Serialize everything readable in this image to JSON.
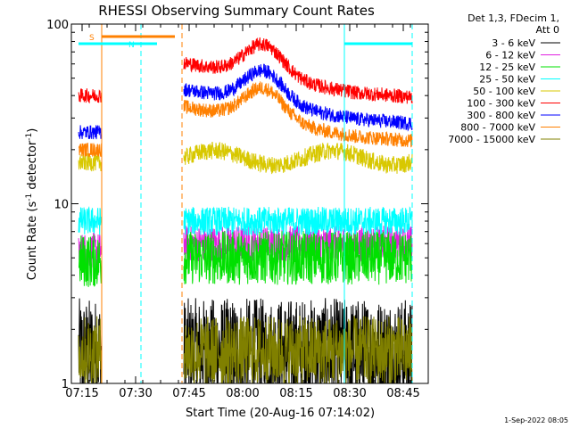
{
  "chart_data": {
    "type": "line",
    "title": "RHESSI Observing Summary Count Rates",
    "xlabel": "Start Time (20-Aug-16 07:14:02)",
    "ylabel_main": "Count Rate (s",
    "ylabel_sup1": "-1",
    "ylabel_mid": " detector",
    "ylabel_sup2": "-1",
    "ylabel_end": ")",
    "yscale": "log",
    "ylim": [
      1,
      100
    ],
    "xlim": [
      "07:12",
      "08:52"
    ],
    "x_ticks": [
      "07:15",
      "07:30",
      "07:45",
      "08:00",
      "08:15",
      "08:30",
      "08:45"
    ],
    "y_ticks": [
      "1",
      "10",
      "100"
    ],
    "legend_header": [
      "Det 1,3, FDecim 1,",
      "Att 0"
    ],
    "legend_position": "right",
    "series": [
      {
        "name": "3 - 6 keV",
        "color": "#000000",
        "gap_level": 1.5,
        "obs_level": 1.5,
        "noise": 0.3
      },
      {
        "name": "6 - 12 keV",
        "color": "#e020e0",
        "gap_level": 5.5,
        "obs_level": 6.0,
        "noise": 0.1
      },
      {
        "name": "12 - 25 keV",
        "color": "#00e000",
        "gap_level": 4.8,
        "obs_level": 5.0,
        "noise": 0.15
      },
      {
        "name": "25 - 50 keV",
        "color": "#00ffff",
        "gap_level": 8.0,
        "obs_level": 8.0,
        "noise": 0.08
      },
      {
        "name": "50 - 100 keV",
        "color": "#d8c800",
        "gap_level": 17,
        "obs_level": 18,
        "noise": 0.05
      },
      {
        "name": "100 - 300 keV",
        "color": "#ff0000",
        "gap_level": 40,
        "obs_level": 42,
        "noise": 0.04
      },
      {
        "name": "300 - 800 keV",
        "color": "#0000ff",
        "gap_level": 25,
        "obs_level": 30,
        "noise": 0.04
      },
      {
        "name": "800 - 7000 keV",
        "color": "#ff8000",
        "gap_level": 20,
        "obs_level": 24,
        "noise": 0.04
      },
      {
        "name": "7000 - 15000 keV",
        "color": "#808000",
        "gap_level": 1.5,
        "obs_level": 1.5,
        "noise": 0.2
      }
    ],
    "observation_segments": [
      {
        "start": "07:14:02",
        "end": "07:20:30"
      },
      {
        "start": "07:43:30",
        "end": "08:47:30"
      }
    ],
    "flags": [
      {
        "label": "S",
        "color": "#ff8000",
        "start": "07:20:30",
        "end": "07:41:00"
      },
      {
        "label": "N",
        "color": "#00ffff",
        "start": "07:14:00",
        "end": "07:36:00"
      },
      {
        "label": "",
        "color": "#00ffff",
        "start": "08:28:30",
        "end": "08:47:30"
      }
    ],
    "markers": [
      {
        "time": "07:20:30",
        "color": "#ff8000",
        "style": "solid"
      },
      {
        "time": "07:31:30",
        "color": "#00ffff",
        "style": "dashed"
      },
      {
        "time": "07:43:00",
        "color": "#ff8000",
        "style": "dashed"
      },
      {
        "time": "08:28:30",
        "color": "#00ffff",
        "style": "solid"
      },
      {
        "time": "08:47:30",
        "color": "#00ffff",
        "style": "dashed"
      }
    ],
    "footer_date": "1-Sep-2022 08:05"
  }
}
